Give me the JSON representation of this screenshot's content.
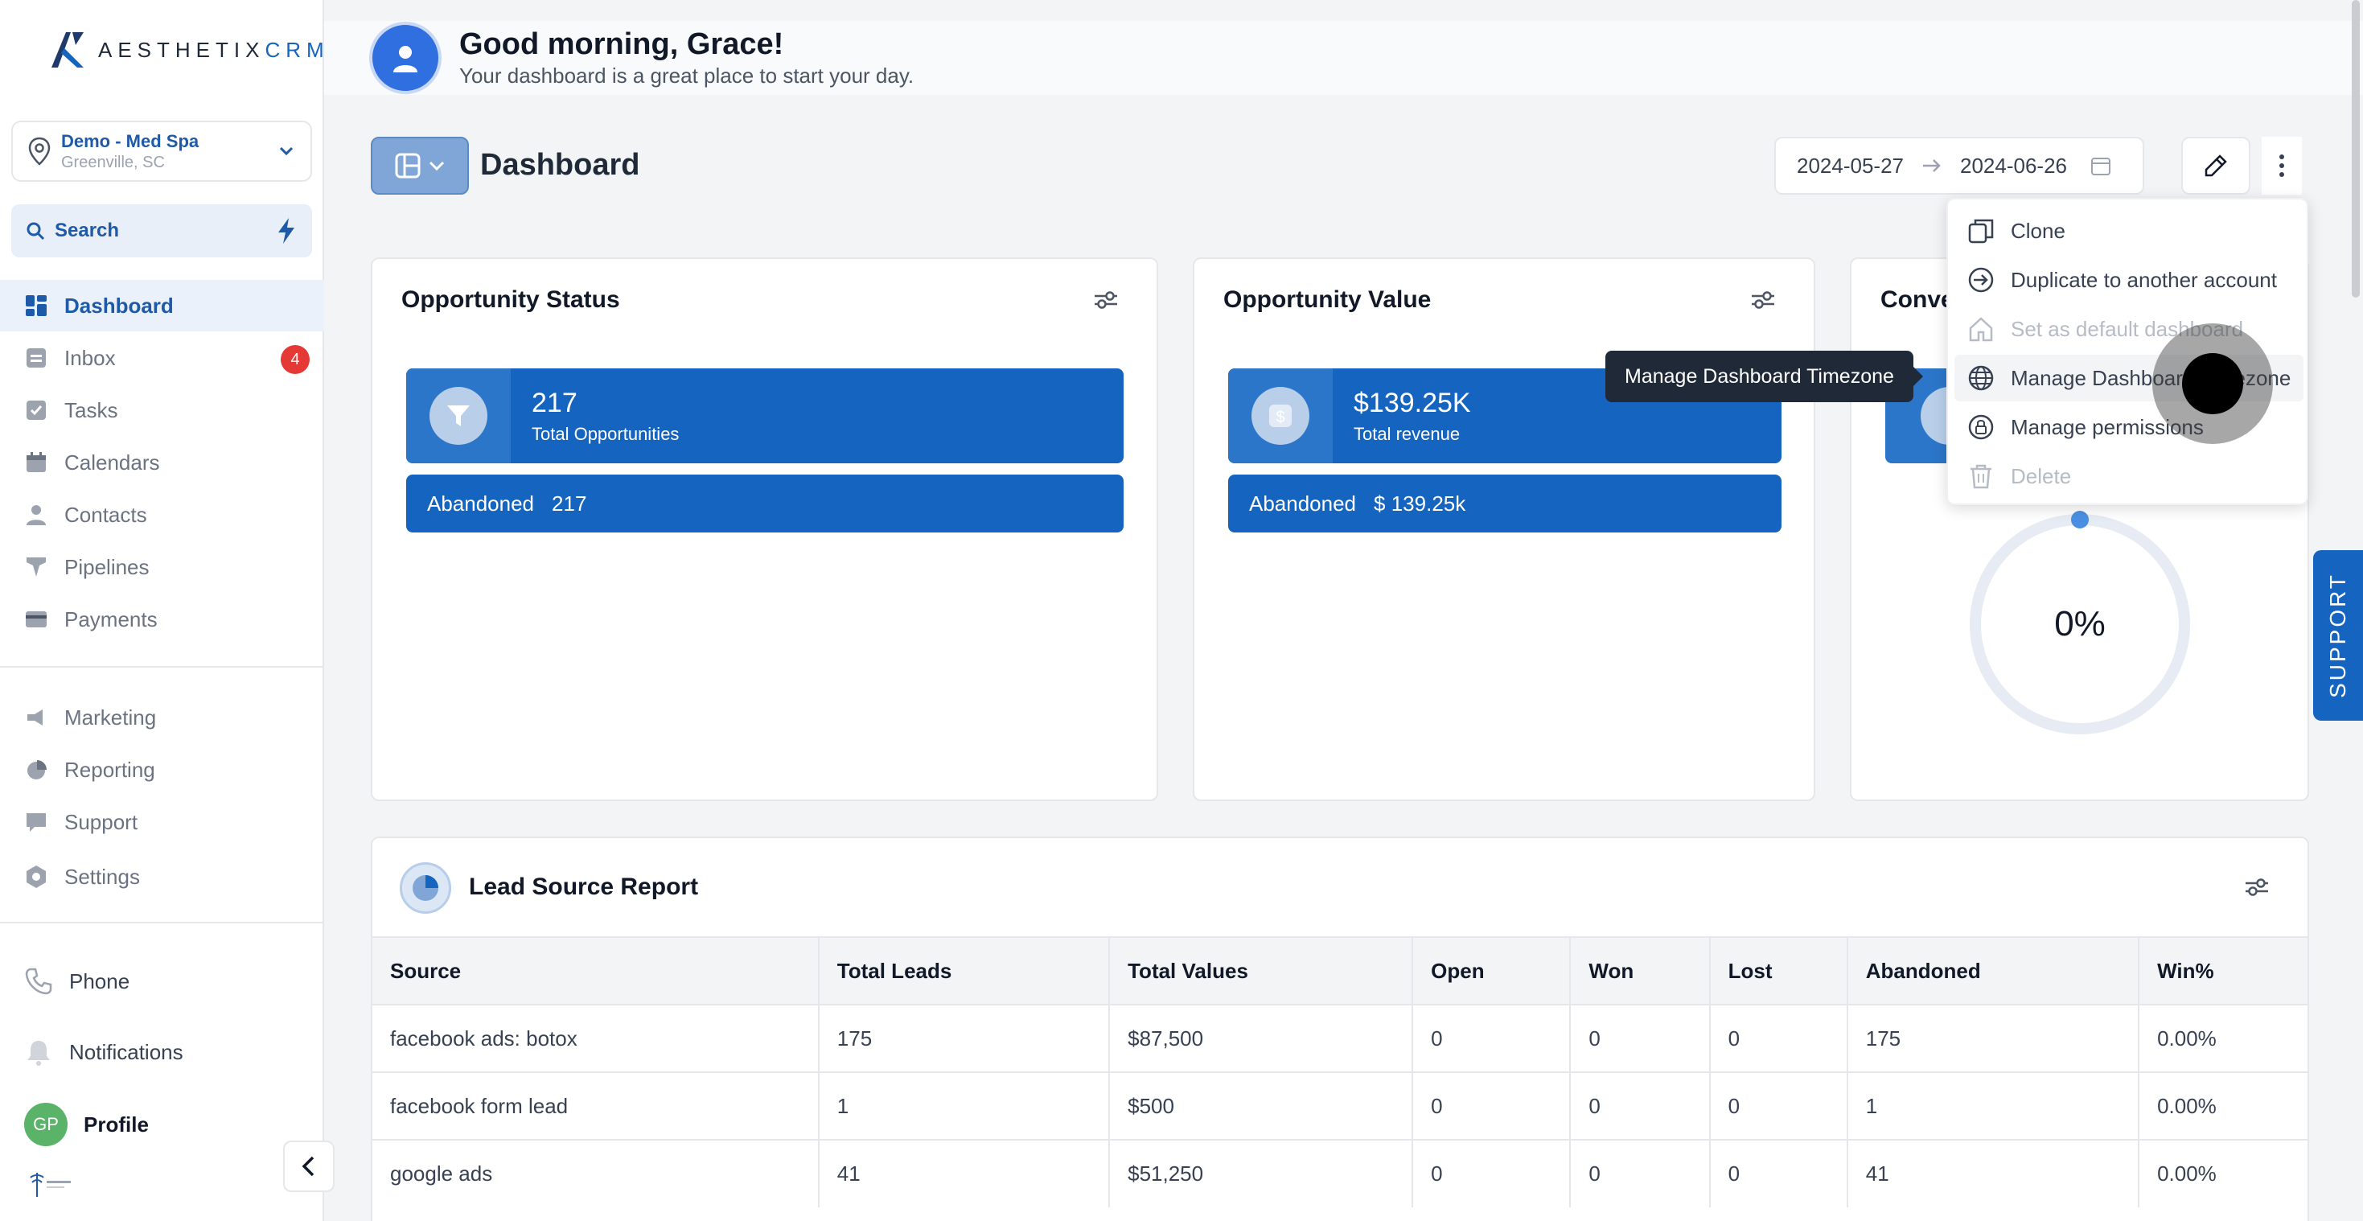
{
  "brand": {
    "name_main": "AESTHETIX",
    "name_accent": "CRM"
  },
  "location": {
    "name": "Demo - Med Spa",
    "city": "Greenville, SC"
  },
  "search": {
    "label": "Search"
  },
  "sidebar": {
    "items": [
      {
        "label": "Dashboard",
        "icon": "dashboard-icon"
      },
      {
        "label": "Inbox",
        "icon": "inbox-icon",
        "badge": "4"
      },
      {
        "label": "Tasks",
        "icon": "tasks-icon"
      },
      {
        "label": "Calendars",
        "icon": "calendar-icon"
      },
      {
        "label": "Contacts",
        "icon": "contacts-icon"
      },
      {
        "label": "Pipelines",
        "icon": "pipelines-icon"
      },
      {
        "label": "Payments",
        "icon": "payments-icon"
      },
      {
        "label": "Marketing",
        "icon": "marketing-icon"
      },
      {
        "label": "Reporting",
        "icon": "reporting-icon"
      },
      {
        "label": "Support",
        "icon": "support-icon"
      },
      {
        "label": "Settings",
        "icon": "settings-icon"
      }
    ],
    "phone": "Phone",
    "notifications": "Notifications",
    "profile": "Profile",
    "profile_initials": "GP"
  },
  "header": {
    "greeting": "Good morning, Grace!",
    "subtitle": "Your dashboard is a great place to start your day."
  },
  "dashboard": {
    "title": "Dashboard",
    "date_from": "2024-05-27",
    "date_to": "2024-06-26"
  },
  "cards": {
    "opportunity_status": {
      "title": "Opportunity Status",
      "value": "217",
      "label": "Total Opportunities",
      "sub_label": "Abandoned",
      "sub_value": "217"
    },
    "opportunity_value": {
      "title": "Opportunity Value",
      "value": "$139.25K",
      "label": "Total revenue",
      "sub_label": "Abandoned",
      "sub_value": "$ 139.25k"
    },
    "conversion": {
      "title": "Conve",
      "percent": "0%"
    }
  },
  "menu": {
    "items": [
      {
        "label": "Clone",
        "disabled": false
      },
      {
        "label": "Duplicate to another account",
        "disabled": false
      },
      {
        "label": "Set as default dashboard",
        "disabled": true
      },
      {
        "label": "Manage Dashboard Timezone",
        "disabled": false
      },
      {
        "label": "Manage permissions",
        "disabled": false
      },
      {
        "label": "Delete",
        "disabled": true
      }
    ],
    "tooltip": "Manage Dashboard Timezone"
  },
  "lead_report": {
    "title": "Lead Source Report",
    "columns": [
      "Source",
      "Total Leads",
      "Total Values",
      "Open",
      "Won",
      "Lost",
      "Abandoned",
      "Win%"
    ],
    "rows": [
      [
        "facebook ads: botox",
        "175",
        "$87,500",
        "0",
        "0",
        "0",
        "175",
        "0.00%"
      ],
      [
        "facebook form lead",
        "1",
        "$500",
        "0",
        "0",
        "0",
        "1",
        "0.00%"
      ],
      [
        "google ads",
        "41",
        "$51,250",
        "0",
        "0",
        "0",
        "41",
        "0.00%"
      ]
    ]
  },
  "support_tab": "SUPPORT",
  "colors": {
    "primary": "#1565c0",
    "accent": "#1e5aa8",
    "badge": "#e53935"
  }
}
